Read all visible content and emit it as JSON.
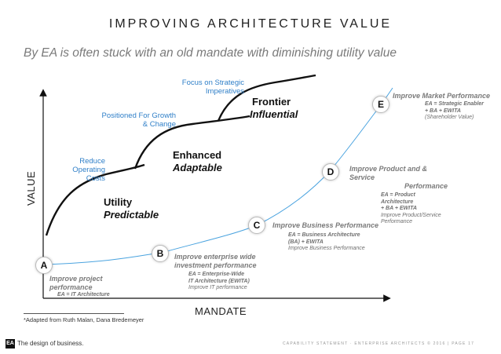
{
  "slide": {
    "title": "IMPROVING ARCHITECTURE VALUE",
    "subtitle": "By EA is often stuck with an old mandate with diminishing utility value"
  },
  "axes": {
    "y_label": "VALUE",
    "x_label": "MANDATE"
  },
  "curve_labels": {
    "reduce_costs": [
      "Reduce",
      "Operating Costs"
    ],
    "growth": [
      "Positioned For Growth",
      "& Change"
    ],
    "strategic": [
      "Focus on Strategic",
      "Imperatives"
    ]
  },
  "stages": [
    {
      "name": "Utility",
      "sub": "Predictable"
    },
    {
      "name": "Enhanced",
      "sub": "Adaptable"
    },
    {
      "name": "Frontier",
      "sub": "Influential"
    }
  ],
  "points": {
    "A": {
      "letter": "A",
      "title": [
        "Improve project",
        "performance"
      ],
      "detail": [
        [
          "b",
          "EA = IT Architecture"
        ]
      ]
    },
    "B": {
      "letter": "B",
      "title": [
        "Improve enterprise wide",
        "investment performance"
      ],
      "detail": [
        [
          "b",
          "EA = Enterprise-Wide"
        ],
        [
          "b",
          "IT Architecture (EWITA)"
        ],
        [
          "",
          "Improve IT performance"
        ]
      ]
    },
    "C": {
      "letter": "C",
      "title": [
        "Improve Business Performance"
      ],
      "detail": [
        [
          "b",
          "EA = Business Architecture"
        ],
        [
          "b",
          "(BA) + EWITA"
        ],
        [
          "",
          "Improve Business Performance"
        ]
      ]
    },
    "D": {
      "letter": "D",
      "title": [
        "Improve Product and & Service",
        "Performance"
      ],
      "detail": [
        [
          "b",
          "EA = Product Architecture"
        ],
        [
          "b",
          "+ BA + EWITA"
        ],
        [
          "",
          "Improve Product/Service"
        ],
        [
          "",
          "Performance"
        ]
      ]
    },
    "E": {
      "letter": "E",
      "title": [
        "Improve Market Performance"
      ],
      "detail": [
        [
          "b",
          "EA = Strategic Enabler"
        ],
        [
          "b",
          "+ BA + EWITA"
        ],
        [
          "",
          "(Shareholder Value)"
        ]
      ]
    }
  },
  "footnote": "*Adapted from Ruth Malan, Dana Bredemeyer",
  "footer": {
    "logo": "EA",
    "tagline": "The design of business.",
    "right": "CAPABILITY STATEMENT · ENTERPRISE ARCHITECTS © 2016  |  PAGE 17"
  },
  "colors": {
    "blue_curve": "#4aa3df",
    "blue_text": "#2f7fc8",
    "black_curve": "#111111"
  }
}
